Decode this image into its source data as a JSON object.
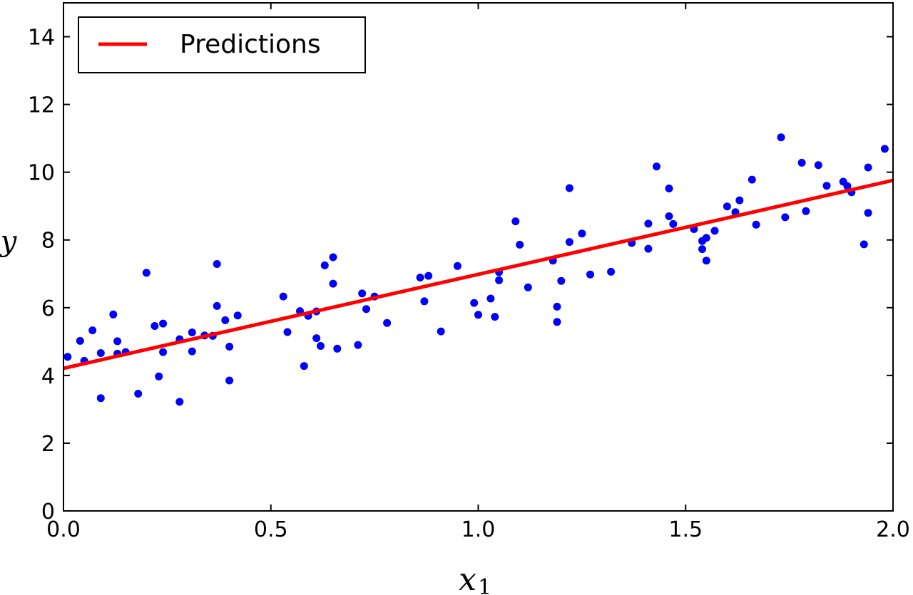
{
  "chart_data": {
    "type": "scatter",
    "xlabel": "x",
    "xlabel_sub": "1",
    "ylabel": "y",
    "xlim": [
      0.0,
      2.0
    ],
    "ylim": [
      0,
      15
    ],
    "x_ticks": [
      "0.0",
      "0.5",
      "1.0",
      "1.5",
      "2.0"
    ],
    "y_ticks": [
      "0",
      "2",
      "4",
      "6",
      "8",
      "10",
      "12",
      "14"
    ],
    "legend": {
      "position": "top-left",
      "entries": [
        "Predictions"
      ]
    },
    "colors": {
      "points": "#0000ff",
      "line": "#ff0000",
      "axes": "#000000"
    },
    "series": [
      {
        "kind": "line",
        "name": "Predictions",
        "x": [
          0.0,
          2.0
        ],
        "y": [
          4.21,
          9.76
        ]
      },
      {
        "kind": "points",
        "points": [
          [
            0.01,
            4.55
          ],
          [
            0.04,
            5.02
          ],
          [
            0.05,
            4.43
          ],
          [
            0.07,
            5.33
          ],
          [
            0.09,
            3.33
          ],
          [
            0.09,
            4.66
          ],
          [
            0.12,
            5.8
          ],
          [
            0.13,
            5.01
          ],
          [
            0.13,
            4.64
          ],
          [
            0.15,
            4.69
          ],
          [
            0.18,
            3.46
          ],
          [
            0.2,
            7.03
          ],
          [
            0.22,
            5.46
          ],
          [
            0.23,
            3.97
          ],
          [
            0.24,
            5.53
          ],
          [
            0.24,
            4.69
          ],
          [
            0.28,
            5.07
          ],
          [
            0.28,
            3.22
          ],
          [
            0.31,
            5.27
          ],
          [
            0.31,
            4.71
          ],
          [
            0.34,
            5.18
          ],
          [
            0.36,
            5.17
          ],
          [
            0.37,
            6.05
          ],
          [
            0.37,
            7.29
          ],
          [
            0.39,
            5.63
          ],
          [
            0.4,
            4.85
          ],
          [
            0.4,
            3.85
          ],
          [
            0.42,
            5.77
          ],
          [
            0.53,
            6.33
          ],
          [
            0.54,
            5.28
          ],
          [
            0.57,
            5.9
          ],
          [
            0.58,
            4.28
          ],
          [
            0.59,
            5.76
          ],
          [
            0.61,
            5.1
          ],
          [
            0.61,
            5.89
          ],
          [
            0.62,
            4.87
          ],
          [
            0.63,
            7.25
          ],
          [
            0.65,
            6.71
          ],
          [
            0.65,
            7.49
          ],
          [
            0.66,
            4.79
          ],
          [
            0.71,
            4.9
          ],
          [
            0.72,
            6.42
          ],
          [
            0.73,
            5.96
          ],
          [
            0.75,
            6.33
          ],
          [
            0.78,
            5.55
          ],
          [
            0.86,
            6.89
          ],
          [
            0.87,
            6.19
          ],
          [
            0.88,
            6.94
          ],
          [
            0.91,
            5.3
          ],
          [
            0.95,
            7.23
          ],
          [
            0.99,
            6.14
          ],
          [
            1.0,
            5.79
          ],
          [
            1.03,
            6.27
          ],
          [
            1.04,
            5.73
          ],
          [
            1.05,
            7.05
          ],
          [
            1.05,
            6.81
          ],
          [
            1.09,
            8.55
          ],
          [
            1.1,
            7.86
          ],
          [
            1.12,
            6.6
          ],
          [
            1.18,
            7.39
          ],
          [
            1.19,
            6.03
          ],
          [
            1.19,
            5.58
          ],
          [
            1.2,
            6.79
          ],
          [
            1.22,
            9.53
          ],
          [
            1.22,
            7.94
          ],
          [
            1.25,
            8.19
          ],
          [
            1.27,
            6.98
          ],
          [
            1.32,
            7.06
          ],
          [
            1.37,
            7.91
          ],
          [
            1.41,
            8.48
          ],
          [
            1.41,
            7.74
          ],
          [
            1.43,
            10.17
          ],
          [
            1.46,
            9.52
          ],
          [
            1.46,
            8.7
          ],
          [
            1.47,
            8.47
          ],
          [
            1.52,
            8.32
          ],
          [
            1.54,
            7.97
          ],
          [
            1.54,
            7.73
          ],
          [
            1.55,
            8.06
          ],
          [
            1.55,
            7.39
          ],
          [
            1.57,
            8.27
          ],
          [
            1.6,
            8.99
          ],
          [
            1.62,
            8.82
          ],
          [
            1.63,
            9.17
          ],
          [
            1.66,
            9.78
          ],
          [
            1.67,
            8.45
          ],
          [
            1.73,
            11.03
          ],
          [
            1.74,
            8.67
          ],
          [
            1.78,
            10.28
          ],
          [
            1.79,
            8.85
          ],
          [
            1.82,
            10.21
          ],
          [
            1.84,
            9.6
          ],
          [
            1.88,
            9.72
          ],
          [
            1.89,
            9.59
          ],
          [
            1.9,
            9.41
          ],
          [
            1.93,
            7.87
          ],
          [
            1.94,
            8.8
          ],
          [
            1.94,
            10.14
          ],
          [
            1.98,
            10.69
          ]
        ]
      }
    ]
  }
}
